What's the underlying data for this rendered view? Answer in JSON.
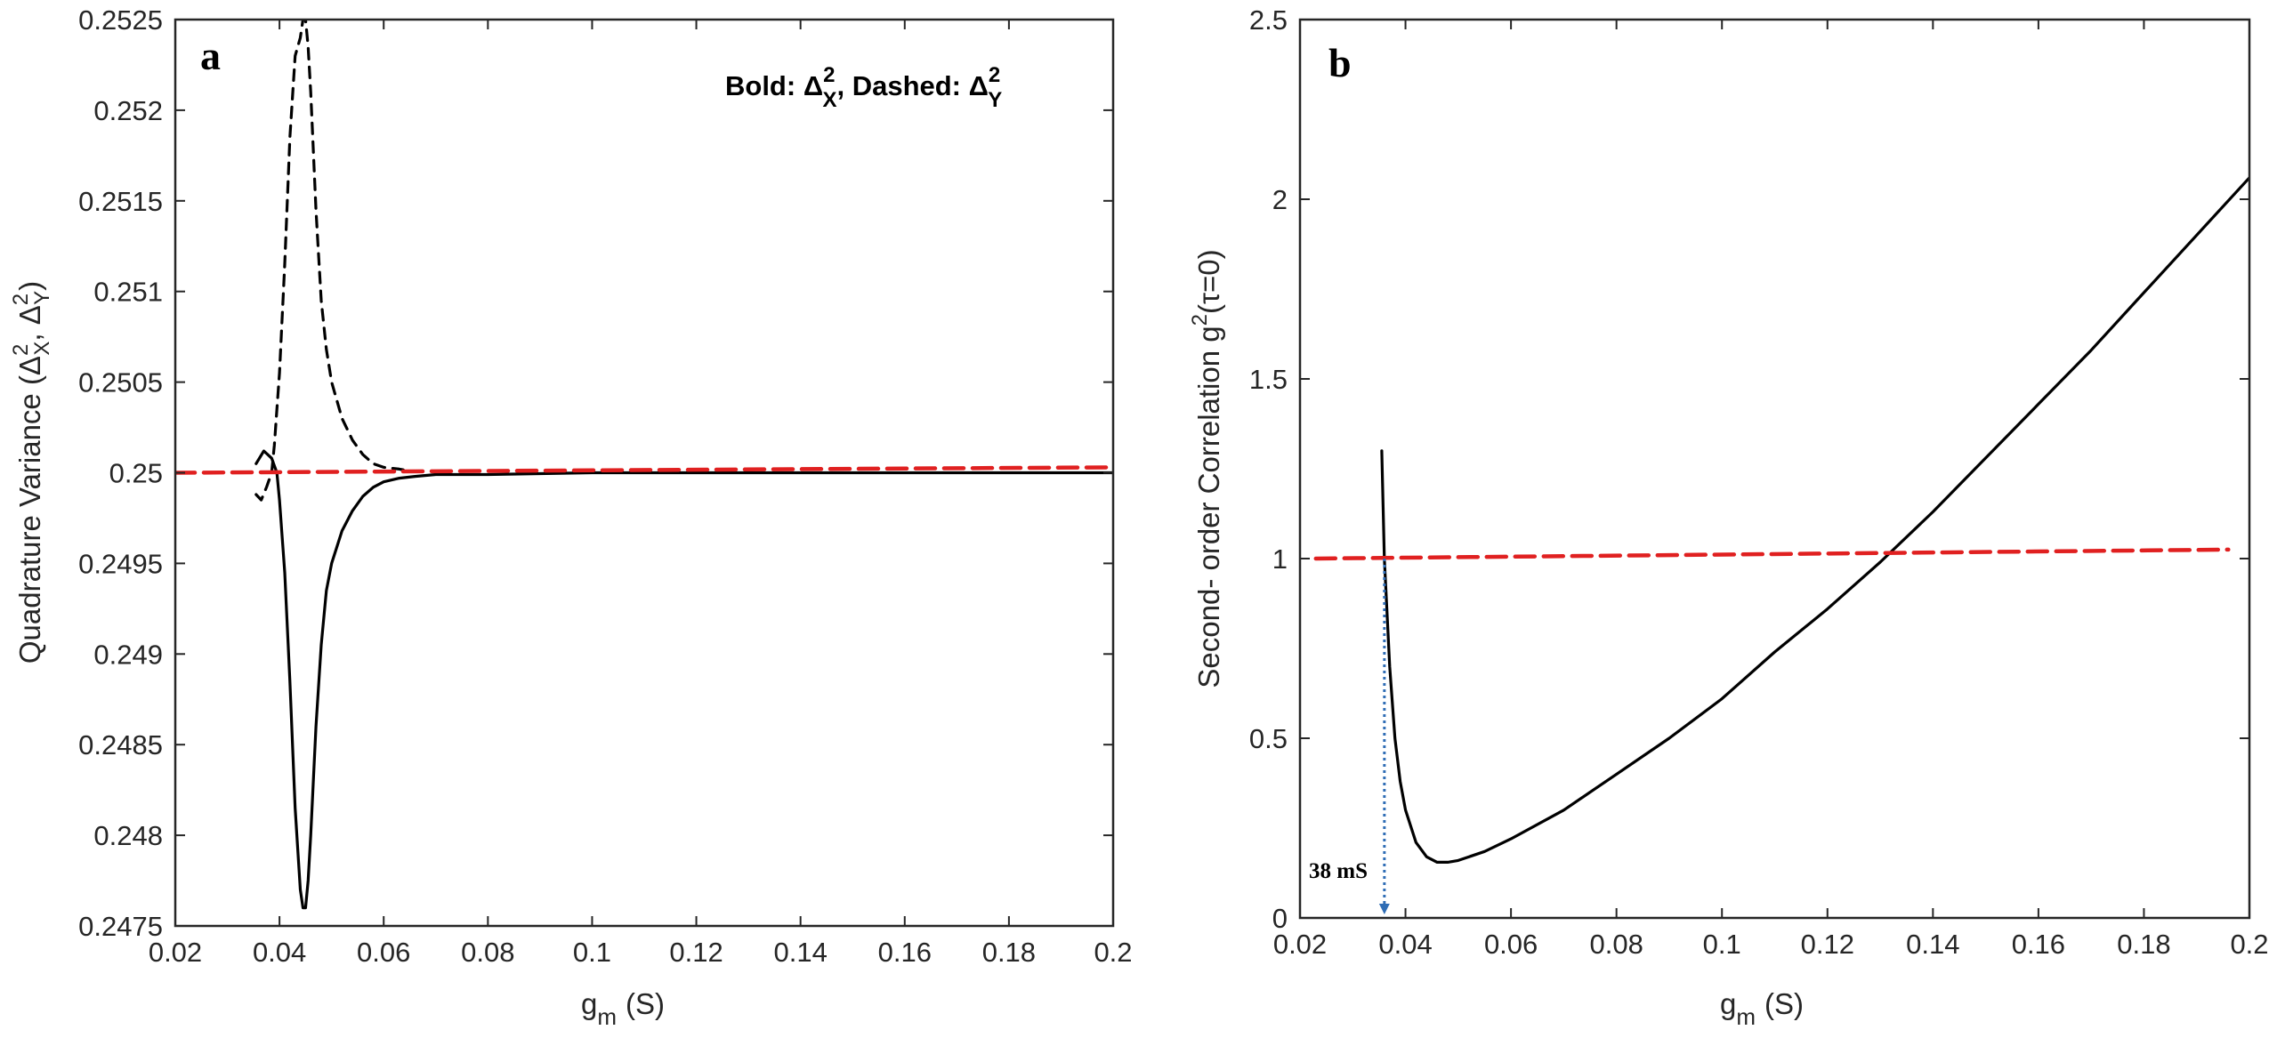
{
  "chart_data": [
    {
      "panel": "a",
      "type": "line",
      "xlabel": "g",
      "xlabel_sub": "m",
      "xlabel_unit": "(S)",
      "ylabel": "Quadrature Variance (Δ²X, Δ²Y)",
      "ylabel_parts": {
        "pre": "Quadrature Variance (",
        "d1": "Δ",
        "sup1": "2",
        "sub1": "X",
        "sep": ", ",
        "d2": "Δ",
        "sup2": "2",
        "sub2": "Y",
        "post": ")"
      },
      "xlim": [
        0.02,
        0.2
      ],
      "ylim": [
        0.2475,
        0.2525
      ],
      "xticks": [
        "0.02",
        "0.04",
        "0.06",
        "0.08",
        "0.1",
        "0.12",
        "0.14",
        "0.16",
        "0.18",
        "0.2"
      ],
      "yticks": [
        "0.2475",
        "0.248",
        "0.2485",
        "0.249",
        "0.2495",
        "0.25",
        "0.2505",
        "0.251",
        "0.2515",
        "0.252",
        "0.2525"
      ],
      "legend_text": {
        "p1": "Bold: ",
        "d": "Δ",
        "sup": "2",
        "subX": "X",
        "mid": ", Dashed: ",
        "subY": "Y"
      },
      "series": [
        {
          "name": "Δ²X (bold)",
          "style": "solid",
          "color": "#000000",
          "x": [
            0.0355,
            0.037,
            0.0385,
            0.0395,
            0.04,
            0.041,
            0.042,
            0.043,
            0.044,
            0.0445,
            0.045,
            0.0455,
            0.046,
            0.047,
            0.048,
            0.049,
            0.05,
            0.052,
            0.054,
            0.056,
            0.058,
            0.06,
            0.063,
            0.066,
            0.07,
            0.08,
            0.1,
            0.14,
            0.2
          ],
          "y": [
            0.25005,
            0.25012,
            0.25008,
            0.25,
            0.24985,
            0.24945,
            0.24885,
            0.24815,
            0.2477,
            0.2476,
            0.2476,
            0.24775,
            0.248,
            0.2486,
            0.24905,
            0.24935,
            0.2495,
            0.24968,
            0.24979,
            0.24987,
            0.24992,
            0.24995,
            0.24997,
            0.24998,
            0.24999,
            0.24999,
            0.25,
            0.25,
            0.25
          ]
        },
        {
          "name": "Δ²Y (dashed)",
          "style": "dashed",
          "color": "#000000",
          "x": [
            0.0355,
            0.0365,
            0.0375,
            0.0385,
            0.039,
            0.04,
            0.041,
            0.042,
            0.043,
            0.044,
            0.0445,
            0.045,
            0.0455,
            0.046,
            0.047,
            0.048,
            0.049,
            0.05,
            0.052,
            0.054,
            0.056,
            0.058,
            0.06,
            0.063,
            0.065
          ],
          "y": [
            0.24988,
            0.24985,
            0.24992,
            0.25,
            0.25015,
            0.25055,
            0.25115,
            0.25185,
            0.2523,
            0.2524,
            0.2525,
            0.2525,
            0.25235,
            0.2521,
            0.25145,
            0.25095,
            0.25068,
            0.2505,
            0.2503,
            0.25018,
            0.2501,
            0.25005,
            0.25003,
            0.25002,
            0.25001
          ]
        },
        {
          "name": "reference",
          "style": "dashed",
          "color": "#e02020",
          "x": [
            0.02,
            0.2
          ],
          "y": [
            0.25,
            0.25003
          ]
        }
      ]
    },
    {
      "panel": "b",
      "type": "line",
      "xlabel": "g",
      "xlabel_sub": "m",
      "xlabel_unit": "(S)",
      "ylabel": "Second- order Correlation g²(τ=0)",
      "ylabel_parts": {
        "pre": "Second- order Correlation g",
        "sup": "2",
        "post": "(τ=0)"
      },
      "xlim": [
        0.02,
        0.2
      ],
      "ylim": [
        0,
        2.5
      ],
      "xticks": [
        "0.02",
        "0.04",
        "0.06",
        "0.08",
        "0.1",
        "0.12",
        "0.14",
        "0.16",
        "0.18",
        "0.2"
      ],
      "yticks": [
        "0",
        "0.5",
        "1",
        "1.5",
        "2",
        "2.5"
      ],
      "annotation": {
        "text": "38 mS",
        "x": 0.036
      },
      "series": [
        {
          "name": "g2",
          "style": "solid",
          "color": "#000000",
          "x": [
            0.0355,
            0.036,
            0.037,
            0.038,
            0.039,
            0.04,
            0.042,
            0.044,
            0.046,
            0.048,
            0.05,
            0.055,
            0.06,
            0.07,
            0.08,
            0.09,
            0.1,
            0.11,
            0.12,
            0.13,
            0.14,
            0.15,
            0.16,
            0.17,
            0.18,
            0.19,
            0.2
          ],
          "y": [
            1.3,
            1.0,
            0.7,
            0.5,
            0.38,
            0.3,
            0.21,
            0.17,
            0.155,
            0.155,
            0.16,
            0.185,
            0.22,
            0.3,
            0.4,
            0.5,
            0.61,
            0.74,
            0.86,
            0.99,
            1.13,
            1.28,
            1.43,
            1.58,
            1.74,
            1.9,
            2.06
          ]
        },
        {
          "name": "reference",
          "style": "dashed",
          "color": "#e02020",
          "x": [
            0.023,
            0.196
          ],
          "y": [
            1.0,
            1.025
          ]
        }
      ]
    }
  ]
}
